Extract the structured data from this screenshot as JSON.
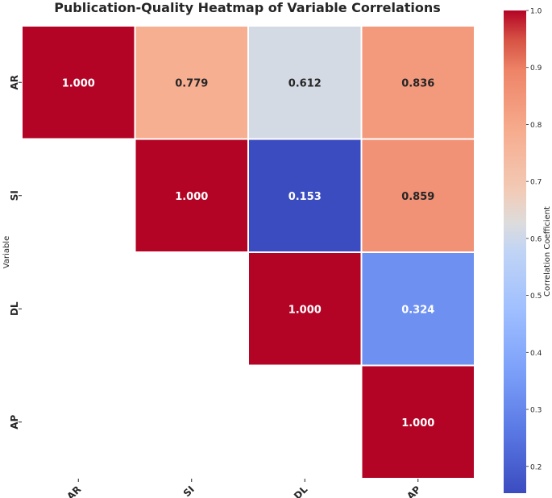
{
  "chart_data": {
    "type": "heatmap",
    "title": "Publication-Quality Heatmap of Variable Correlations",
    "ylabel": "Variable",
    "xlabel": "",
    "rows": [
      "AR",
      "SI",
      "DL",
      "AP"
    ],
    "cols": [
      "AR",
      "SI",
      "DL",
      "AP"
    ],
    "mask": "lower-triangle",
    "values": [
      [
        1.0,
        0.779,
        0.612,
        0.836
      ],
      [
        null,
        1.0,
        0.153,
        0.859
      ],
      [
        null,
        null,
        1.0,
        0.324
      ],
      [
        null,
        null,
        null,
        1.0
      ]
    ],
    "cell_labels": [
      [
        "1.000",
        "0.779",
        "0.612",
        "0.836"
      ],
      [
        null,
        "1.000",
        "0.153",
        "0.859"
      ],
      [
        null,
        null,
        "1.000",
        "0.324"
      ],
      [
        null,
        null,
        null,
        "1.000"
      ]
    ],
    "colormap": "coolwarm",
    "colorbar": {
      "label": "Correlation Coefficient",
      "range": [
        0.153,
        1.0
      ],
      "ticks": [
        "0.2",
        "0.3",
        "0.4",
        "0.5",
        "0.6",
        "0.7",
        "0.8",
        "0.9",
        "1.0"
      ],
      "tick_values": [
        0.2,
        0.3,
        0.4,
        0.5,
        0.6,
        0.7,
        0.8,
        0.9,
        1.0
      ]
    },
    "grid_line_color": "#ffffff",
    "text_color_dark": "#262626",
    "text_color_light": "#ffffff"
  }
}
